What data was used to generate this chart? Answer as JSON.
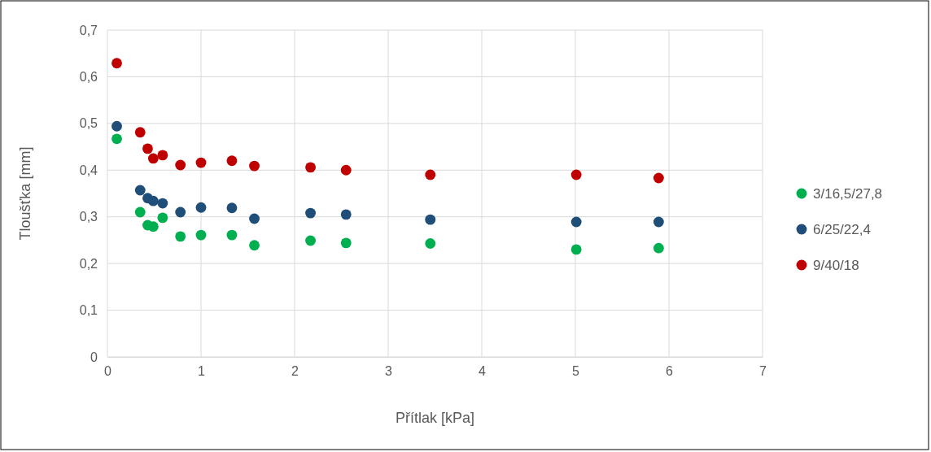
{
  "chart_data": {
    "type": "scatter",
    "xlabel": "Přítlak [kPa]",
    "ylabel": "Tloušťka [mm]",
    "xlim": [
      0,
      7
    ],
    "xticks": [
      0,
      1,
      2,
      3,
      4,
      5,
      6,
      7
    ],
    "ylim": [
      0,
      0.7
    ],
    "yticks": [
      {
        "value": 0,
        "label": "0"
      },
      {
        "value": 0.1,
        "label": "0,1"
      },
      {
        "value": 0.2,
        "label": "0,2"
      },
      {
        "value": 0.3,
        "label": "0,3"
      },
      {
        "value": 0.4,
        "label": "0,4"
      },
      {
        "value": 0.5,
        "label": "0,5"
      },
      {
        "value": 0.6,
        "label": "0,6"
      },
      {
        "value": 0.7,
        "label": "0,7"
      }
    ],
    "grid": true,
    "legend": "right",
    "marker": "circle",
    "series": [
      {
        "name": "3/16,5/27,8",
        "color": "#00b050",
        "x": [
          0.1,
          0.35,
          0.43,
          0.49,
          0.59,
          0.78,
          1.0,
          1.33,
          1.57,
          2.17,
          2.55,
          3.45,
          5.01,
          5.89
        ],
        "values": [
          0.467,
          0.31,
          0.282,
          0.279,
          0.298,
          0.258,
          0.261,
          0.261,
          0.239,
          0.249,
          0.244,
          0.243,
          0.23,
          0.233
        ]
      },
      {
        "name": "6/25/22,4",
        "color": "#1f4e79",
        "x": [
          0.1,
          0.35,
          0.43,
          0.49,
          0.59,
          0.78,
          1.0,
          1.33,
          1.57,
          2.17,
          2.55,
          3.45,
          5.01,
          5.89
        ],
        "values": [
          0.494,
          0.357,
          0.34,
          0.334,
          0.329,
          0.31,
          0.32,
          0.319,
          0.296,
          0.308,
          0.305,
          0.294,
          0.289,
          0.289
        ]
      },
      {
        "name": "9/40/18",
        "color": "#c00000",
        "x": [
          0.1,
          0.35,
          0.43,
          0.49,
          0.59,
          0.78,
          1.0,
          1.33,
          1.57,
          2.17,
          2.55,
          3.45,
          5.01,
          5.89
        ],
        "values": [
          0.629,
          0.481,
          0.446,
          0.425,
          0.432,
          0.411,
          0.416,
          0.42,
          0.409,
          0.406,
          0.4,
          0.39,
          0.39,
          0.383
        ]
      }
    ]
  }
}
